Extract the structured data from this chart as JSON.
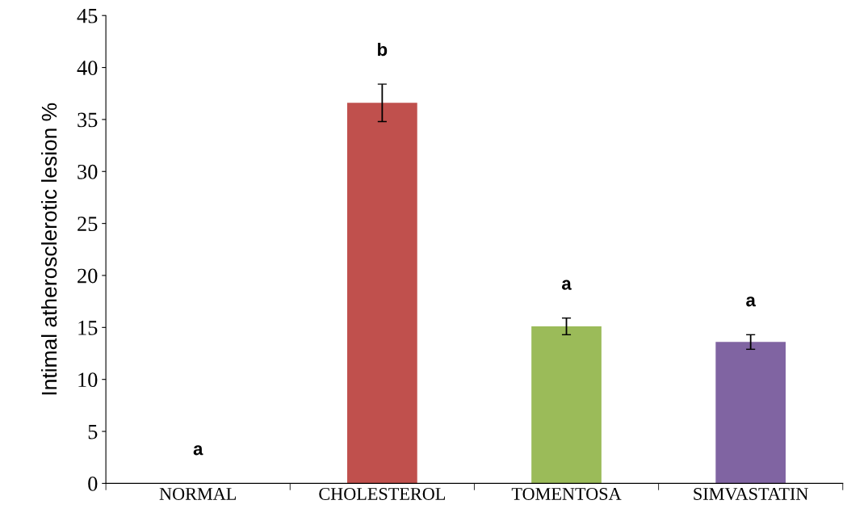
{
  "chart_data": {
    "type": "bar",
    "ylabel": "Intimal atherosclerotic lesion %",
    "categories": [
      "NORMAL",
      "CHOLESTEROL",
      "TOMENTOSA",
      "SIMVASTATIN"
    ],
    "values": [
      0,
      36.6,
      15.1,
      13.6
    ],
    "colors": [
      "#4f81bd",
      "#c0504d",
      "#9bbb59",
      "#8064a2"
    ],
    "errors": [
      null,
      1.8,
      0.8,
      0.7
    ],
    "ylim": [
      0,
      45
    ],
    "yticks": [
      0,
      5,
      10,
      15,
      20,
      25,
      30,
      35,
      40,
      45
    ],
    "grid": false,
    "annotations": [
      "a",
      "b",
      "a",
      "a"
    ]
  }
}
